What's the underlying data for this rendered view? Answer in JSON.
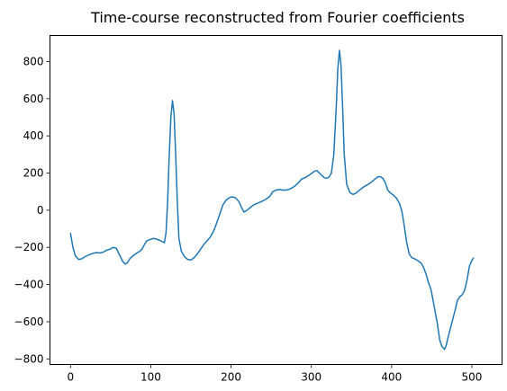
{
  "chart_data": {
    "type": "line",
    "title": "Time-course reconstructed from Fourier coefficients",
    "xlabel": "",
    "ylabel": "",
    "xlim": [
      -25.6,
      537.6
    ],
    "ylim": [
      -830,
      940
    ],
    "xticks": [
      0,
      100,
      200,
      300,
      400,
      500
    ],
    "yticks": [
      -800,
      -600,
      -400,
      -200,
      0,
      200,
      400,
      600,
      800
    ],
    "grid": false,
    "legend": "none",
    "series": [
      {
        "color": "#1f77b4",
        "points": [
          [
            0,
            -125
          ],
          [
            3,
            -200
          ],
          [
            6,
            -245
          ],
          [
            10,
            -265
          ],
          [
            14,
            -262
          ],
          [
            18,
            -250
          ],
          [
            23,
            -240
          ],
          [
            28,
            -232
          ],
          [
            32,
            -228
          ],
          [
            37,
            -230
          ],
          [
            41,
            -225
          ],
          [
            45,
            -215
          ],
          [
            49,
            -210
          ],
          [
            53,
            -200
          ],
          [
            57,
            -205
          ],
          [
            61,
            -240
          ],
          [
            65,
            -275
          ],
          [
            68,
            -290
          ],
          [
            71,
            -282
          ],
          [
            74,
            -260
          ],
          [
            78,
            -245
          ],
          [
            82,
            -232
          ],
          [
            86,
            -222
          ],
          [
            89,
            -210
          ],
          [
            92,
            -185
          ],
          [
            95,
            -165
          ],
          [
            99,
            -158
          ],
          [
            103,
            -152
          ],
          [
            107,
            -155
          ],
          [
            111,
            -162
          ],
          [
            115,
            -170
          ],
          [
            117,
            -175
          ],
          [
            119,
            -120
          ],
          [
            121,
            50
          ],
          [
            123,
            300
          ],
          [
            125,
            500
          ],
          [
            127,
            590
          ],
          [
            129,
            520
          ],
          [
            131,
            300
          ],
          [
            133,
            50
          ],
          [
            135,
            -150
          ],
          [
            138,
            -220
          ],
          [
            142,
            -250
          ],
          [
            146,
            -265
          ],
          [
            150,
            -268
          ],
          [
            154,
            -255
          ],
          [
            158,
            -235
          ],
          [
            162,
            -210
          ],
          [
            166,
            -185
          ],
          [
            170,
            -165
          ],
          [
            174,
            -145
          ],
          [
            178,
            -115
          ],
          [
            182,
            -70
          ],
          [
            186,
            -20
          ],
          [
            190,
            30
          ],
          [
            194,
            55
          ],
          [
            198,
            68
          ],
          [
            202,
            72
          ],
          [
            206,
            65
          ],
          [
            210,
            45
          ],
          [
            213,
            15
          ],
          [
            216,
            -10
          ],
          [
            220,
            0
          ],
          [
            224,
            15
          ],
          [
            228,
            28
          ],
          [
            233,
            38
          ],
          [
            238,
            47
          ],
          [
            243,
            58
          ],
          [
            248,
            73
          ],
          [
            252,
            100
          ],
          [
            256,
            108
          ],
          [
            260,
            112
          ],
          [
            264,
            108
          ],
          [
            268,
            108
          ],
          [
            272,
            112
          ],
          [
            276,
            120
          ],
          [
            280,
            132
          ],
          [
            284,
            148
          ],
          [
            288,
            168
          ],
          [
            292,
            175
          ],
          [
            296,
            185
          ],
          [
            300,
            197
          ],
          [
            304,
            210
          ],
          [
            307,
            213
          ],
          [
            310,
            200
          ],
          [
            313,
            188
          ],
          [
            316,
            175
          ],
          [
            319,
            172
          ],
          [
            322,
            178
          ],
          [
            325,
            200
          ],
          [
            328,
            300
          ],
          [
            331,
            550
          ],
          [
            333,
            760
          ],
          [
            335,
            860
          ],
          [
            337,
            780
          ],
          [
            339,
            550
          ],
          [
            341,
            300
          ],
          [
            344,
            140
          ],
          [
            348,
            95
          ],
          [
            352,
            85
          ],
          [
            356,
            93
          ],
          [
            360,
            108
          ],
          [
            364,
            122
          ],
          [
            368,
            132
          ],
          [
            372,
            142
          ],
          [
            376,
            155
          ],
          [
            380,
            170
          ],
          [
            383,
            180
          ],
          [
            386,
            180
          ],
          [
            389,
            172
          ],
          [
            392,
            150
          ],
          [
            395,
            110
          ],
          [
            398,
            95
          ],
          [
            402,
            82
          ],
          [
            406,
            65
          ],
          [
            410,
            35
          ],
          [
            413,
            -10
          ],
          [
            416,
            -90
          ],
          [
            419,
            -180
          ],
          [
            422,
            -235
          ],
          [
            425,
            -255
          ],
          [
            429,
            -262
          ],
          [
            433,
            -272
          ],
          [
            437,
            -285
          ],
          [
            440,
            -310
          ],
          [
            443,
            -345
          ],
          [
            446,
            -390
          ],
          [
            449,
            -425
          ],
          [
            451,
            -470
          ],
          [
            454,
            -540
          ],
          [
            457,
            -610
          ],
          [
            460,
            -700
          ],
          [
            463,
            -735
          ],
          [
            466,
            -748
          ],
          [
            468,
            -728
          ],
          [
            470,
            -690
          ],
          [
            473,
            -640
          ],
          [
            476,
            -590
          ],
          [
            479,
            -540
          ],
          [
            482,
            -485
          ],
          [
            485,
            -465
          ],
          [
            488,
            -455
          ],
          [
            491,
            -430
          ],
          [
            494,
            -375
          ],
          [
            497,
            -300
          ],
          [
            500,
            -270
          ],
          [
            502,
            -258
          ]
        ]
      }
    ]
  }
}
